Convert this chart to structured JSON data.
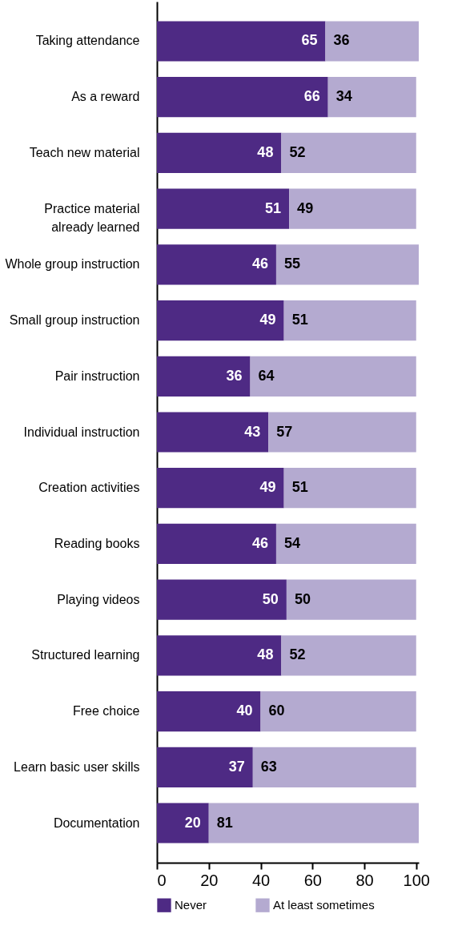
{
  "chart_data": {
    "type": "bar",
    "orientation": "horizontal",
    "stacked": true,
    "data_labels": true,
    "legend": "bottom",
    "grid": false,
    "categories": [
      "Taking attendance",
      "As a reward",
      "Teach new material",
      "Practice material already learned",
      "Whole group instruction",
      "Small group instruction",
      "Pair instruction",
      "Individual instruction",
      "Creation activities",
      "Reading books",
      "Playing videos",
      "Structured learning",
      "Free choice",
      "Learn basic user skills",
      "Documentation"
    ],
    "series": [
      {
        "name": "Never",
        "color": "#4e2a84",
        "values": [
          65,
          66,
          48,
          51,
          46,
          49,
          36,
          43,
          49,
          46,
          50,
          48,
          40,
          37,
          20
        ]
      },
      {
        "name": "At least sometimes",
        "color": "#b4aad0",
        "values": [
          36,
          34,
          52,
          49,
          55,
          51,
          64,
          57,
          51,
          54,
          50,
          52,
          60,
          63,
          81
        ]
      }
    ],
    "xlim": [
      0,
      101
    ],
    "xticks": [
      0,
      20,
      40,
      60,
      80,
      100
    ]
  }
}
